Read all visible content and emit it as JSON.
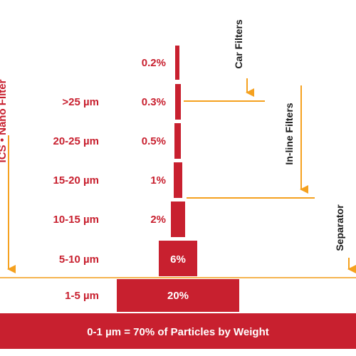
{
  "colors": {
    "bar": "#c8202f",
    "arrow": "#f5a11f",
    "separator_line": "#f5b450",
    "text_red": "#c8202f",
    "text_dark": "#1a1a1a",
    "text_light": "#ffffff"
  },
  "left_axis_label": "ICS • Nano Filter",
  "base_bar": {
    "text": "0-1 µm = 70% of Particles by Weight"
  },
  "rows": [
    {
      "size": "",
      "percent": "0.2%"
    },
    {
      "size": ">25 µm",
      "percent": "0.3%"
    },
    {
      "size": "20-25 µm",
      "percent": "0.5%"
    },
    {
      "size": "15-20 µm",
      "percent": "1%"
    },
    {
      "size": "10-15 µm",
      "percent": "2%"
    },
    {
      "size": "5-10 µm",
      "percent": "6%"
    },
    {
      "size": "1-5 µm",
      "percent": "20%"
    }
  ],
  "filters": [
    {
      "name": "Car Filters"
    },
    {
      "name": "In-line Filters"
    },
    {
      "name": "Separator"
    }
  ]
}
